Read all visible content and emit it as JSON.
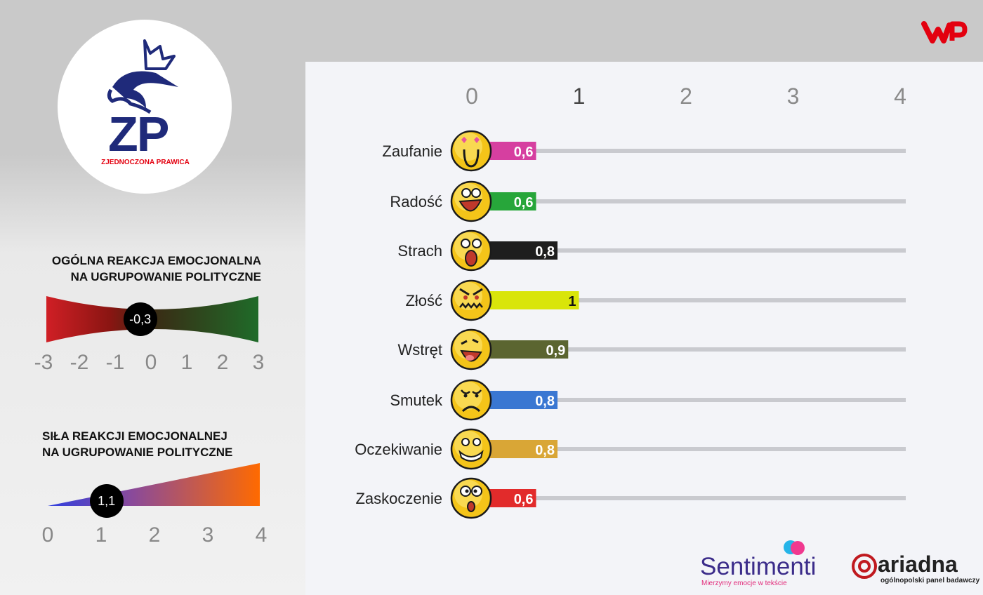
{
  "party": {
    "initials": "ZP",
    "name": "ZJEDNOCZONA PRAWICA"
  },
  "overall": {
    "title_line1": "OGÓLNA REAKCJA EMOCJONALNA",
    "title_line2": "NA UGRUPOWANIE POLITYCZNE",
    "value_label": "-0,3",
    "value": -0.3,
    "scale": [
      "-3",
      "-2",
      "-1",
      "0",
      "1",
      "2",
      "3"
    ],
    "colors": {
      "negative": "#d01f25",
      "positive": "#1f6b29"
    }
  },
  "strength": {
    "title_line1": "SIŁA REAKCJI EMOCJONALNEJ",
    "title_line2": "NA UGRUPOWANIE POLITYCZNE",
    "value_label": "1,1",
    "value": 1.1,
    "scale": [
      "0",
      "1",
      "2",
      "3",
      "4"
    ],
    "colors": {
      "start": "#2f3fe0",
      "end": "#ff6a00"
    }
  },
  "chart_data": {
    "type": "bar",
    "orientation": "horizontal",
    "x_ticks": [
      "0",
      "1",
      "2",
      "3",
      "4"
    ],
    "xlim": [
      0,
      4
    ],
    "categories": [
      "Zaufanie",
      "Radość",
      "Strach",
      "Złość",
      "Wstręt",
      "Smutek",
      "Oczekiwanie",
      "Zaskoczenie"
    ],
    "values": [
      0.6,
      0.6,
      0.8,
      1,
      0.9,
      0.8,
      0.8,
      0.6
    ],
    "value_labels": [
      "0,6",
      "0,6",
      "0,8",
      "1",
      "0,9",
      "0,8",
      "0,8",
      "0,6"
    ],
    "bar_colors": [
      "#d63fa0",
      "#27a63a",
      "#1e1e1e",
      "#d9e50a",
      "#5b6530",
      "#3a77d2",
      "#d9a636",
      "#e22b2b"
    ],
    "label_colors": [
      "#ffffff",
      "#ffffff",
      "#ffffff",
      "#111111",
      "#ffffff",
      "#ffffff",
      "#ffffff",
      "#ffffff"
    ],
    "faces": [
      "in-love",
      "laughing",
      "scared",
      "angry",
      "disgusted",
      "sad",
      "expecting",
      "surprised"
    ]
  },
  "footer": {
    "sentimenti_name": "Sentimenti",
    "sentimenti_tagline": "Mierzymy emocje w tekście",
    "ariadna_name": "ariadna",
    "ariadna_tagline": "ogólnopolski panel badawczy"
  },
  "brand": {
    "wp_color": "#e3000f"
  }
}
